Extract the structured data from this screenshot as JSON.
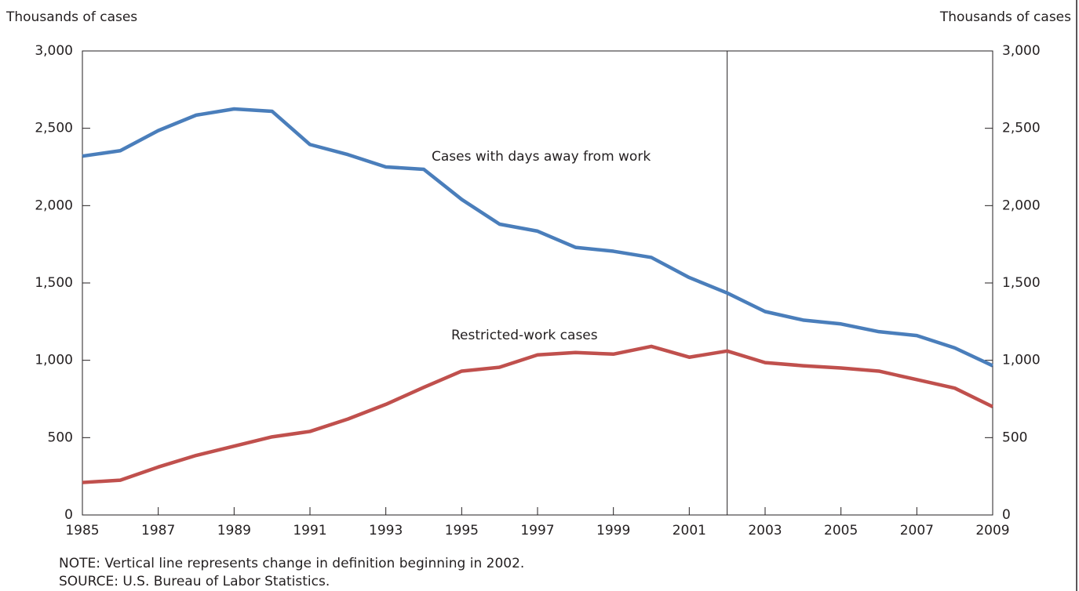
{
  "chart_data": {
    "type": "line",
    "y_label": "Thousands of cases",
    "y2_label": "Thousands of cases",
    "x": [
      1985,
      1986,
      1987,
      1988,
      1989,
      1990,
      1991,
      1992,
      1993,
      1994,
      1995,
      1996,
      1997,
      1998,
      1999,
      2000,
      2001,
      2002,
      2003,
      2004,
      2005,
      2006,
      2007,
      2008,
      2009
    ],
    "series": [
      {
        "name": "Cases with days away from work",
        "color": "#4a7ebb",
        "values": [
          2320,
          2355,
          2485,
          2585,
          2625,
          2610,
          2395,
          2330,
          2250,
          2235,
          2040,
          1880,
          1835,
          1730,
          1705,
          1665,
          1535,
          1435,
          1315,
          1260,
          1235,
          1185,
          1160,
          1080,
          965
        ]
      },
      {
        "name": "Restricted-work cases",
        "color": "#c0504d",
        "values": [
          210,
          225,
          310,
          385,
          445,
          505,
          540,
          620,
          715,
          825,
          930,
          955,
          1035,
          1050,
          1040,
          1090,
          1020,
          1060,
          985,
          965,
          950,
          930,
          875,
          820,
          700
        ]
      }
    ],
    "xlim": [
      1985,
      2009
    ],
    "xticks": [
      1985,
      1987,
      1989,
      1991,
      1993,
      1995,
      1997,
      1999,
      2001,
      2003,
      2005,
      2007,
      2009
    ],
    "ylim": [
      0,
      3000
    ],
    "yticks": [
      0,
      500,
      {
        "value": 1000,
        "label": "1,000"
      },
      {
        "value": 1500,
        "label": "1,500"
      },
      {
        "value": 2000,
        "label": "2,000"
      },
      {
        "value": 2500,
        "label": "2,500"
      },
      {
        "value": 3000,
        "label": "3,000"
      }
    ],
    "vline": 2002,
    "note": "NOTE:  Vertical line represents change in definition beginning in 2002.",
    "source": "SOURCE: U.S. Bureau of Labor Statistics."
  }
}
